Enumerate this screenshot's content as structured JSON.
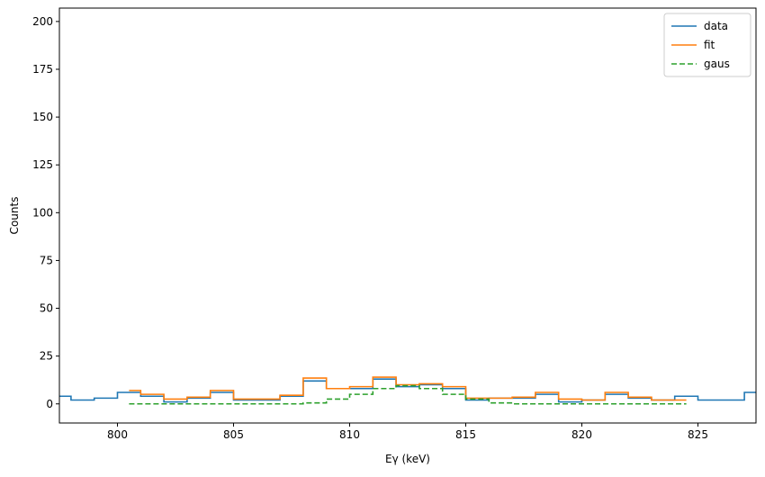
{
  "chart_data": {
    "type": "line",
    "xlabel": "Eγ (keV)",
    "ylabel": "Counts",
    "xlim": [
      797.5,
      827.5
    ],
    "ylim": [
      -10,
      207
    ],
    "xticks": [
      800,
      805,
      810,
      815,
      820,
      825
    ],
    "yticks": [
      0,
      25,
      50,
      75,
      100,
      125,
      150,
      175,
      200
    ],
    "grid": false,
    "legend_position": "top-right",
    "series": [
      {
        "name": "data",
        "color": "#1f77b4",
        "style": "solid",
        "drawstyle": "steps-mid",
        "x": [
          797.5,
          798.5,
          799.5,
          800.5,
          801.5,
          802.5,
          803.5,
          804.5,
          805.5,
          806.5,
          807.5,
          808.5,
          809.5,
          810.5,
          811.5,
          812.5,
          813.5,
          814.5,
          815.5,
          816.5,
          817.5,
          818.5,
          819.5,
          820.5,
          821.5,
          822.5,
          823.5,
          824.5,
          825.5,
          826.5,
          827.5
        ],
        "y": [
          4,
          2,
          3,
          6,
          4,
          1,
          3,
          6,
          2,
          2,
          4,
          12,
          8,
          8,
          13,
          9,
          10,
          8,
          2,
          3,
          3,
          5,
          1,
          2,
          5,
          3,
          2,
          4,
          2,
          2,
          6
        ]
      },
      {
        "name": "fit",
        "color": "#ff7f0e",
        "style": "solid",
        "drawstyle": "steps-mid",
        "x": [
          800.5,
          801.5,
          802.5,
          803.5,
          804.5,
          805.5,
          806.5,
          807.5,
          808.5,
          809.5,
          810.5,
          811.5,
          812.5,
          813.5,
          814.5,
          815.5,
          816.5,
          817.5,
          818.5,
          819.5,
          820.5,
          821.5,
          822.5,
          823.5,
          824.5
        ],
        "y": [
          7,
          5,
          2.5,
          3.5,
          7,
          2.5,
          2.5,
          4.5,
          13.5,
          8,
          9,
          14,
          10,
          10.5,
          9,
          3,
          3,
          3.5,
          6,
          2.5,
          2,
          6,
          3.5,
          2,
          2
        ]
      },
      {
        "name": "gaus",
        "color": "#2ca02c",
        "style": "dashed",
        "drawstyle": "steps-mid",
        "x": [
          800.5,
          801.5,
          802.5,
          803.5,
          804.5,
          805.5,
          806.5,
          807.5,
          808.5,
          809.5,
          810.5,
          811.5,
          812.5,
          813.5,
          814.5,
          815.5,
          816.5,
          817.5,
          818.5,
          819.5,
          820.5,
          821.5,
          822.5,
          823.5,
          824.5
        ],
        "y": [
          0,
          0,
          0,
          0,
          0,
          0,
          0,
          0,
          0.5,
          2.5,
          5,
          8,
          9.5,
          8,
          5,
          2.5,
          0.5,
          0,
          0,
          0,
          0,
          0,
          0,
          0,
          0
        ]
      }
    ]
  }
}
